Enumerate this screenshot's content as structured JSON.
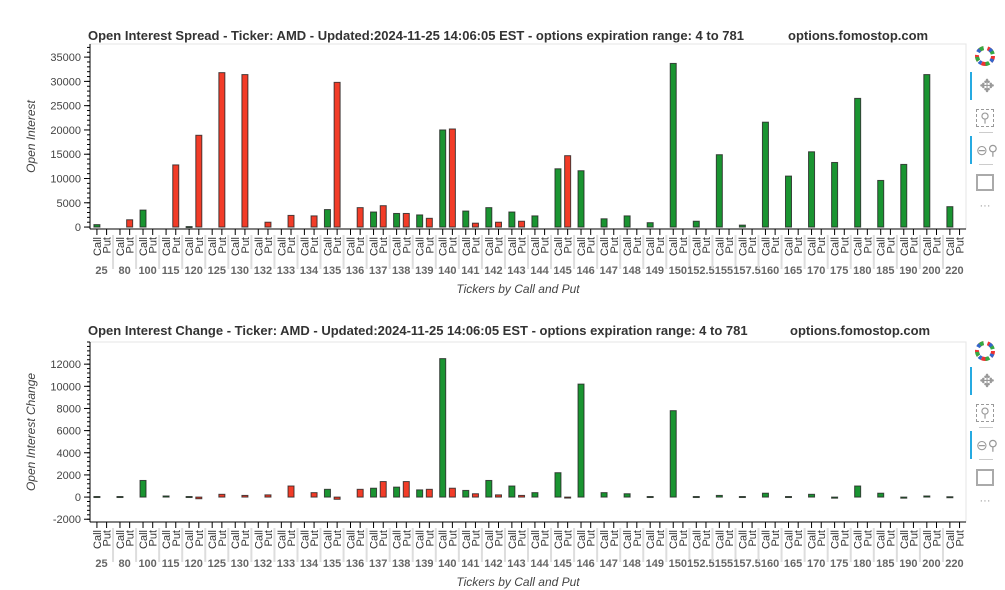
{
  "chart_data": [
    {
      "type": "bar",
      "title": "Open Interest Spread - Ticker: AMD - Updated:2024-11-25 14:06:05 EST - options expiration range: 4 to 781",
      "watermark": "options.fomostop.com",
      "xlabel": "Tickers by Call and Put",
      "ylabel": "Open Interest",
      "ylim": [
        -400,
        37700
      ],
      "yticks": [
        0,
        5000,
        10000,
        15000,
        20000,
        25000,
        30000,
        35000
      ],
      "categories": [
        "25",
        "80",
        "100",
        "115",
        "120",
        "125",
        "130",
        "132",
        "133",
        "134",
        "135",
        "136",
        "137",
        "138",
        "139",
        "140",
        "141",
        "142",
        "143",
        "144",
        "145",
        "146",
        "147",
        "148",
        "149",
        "150",
        "152.5",
        "155",
        "157.5",
        "160",
        "165",
        "170",
        "175",
        "180",
        "185",
        "190",
        "200",
        "220"
      ],
      "subcategories": [
        "Call",
        "Put"
      ],
      "series": [
        {
          "name": "Call",
          "color": "#1a9431",
          "values": [
            500,
            0,
            3500,
            0,
            100,
            0,
            0,
            0,
            0,
            0,
            3600,
            0,
            3100,
            2800,
            2500,
            20000,
            3300,
            4000,
            3100,
            2300,
            12000,
            11600,
            1700,
            2300,
            900,
            33700,
            1200,
            14900,
            400,
            21600,
            10500,
            15500,
            13300,
            26500,
            9600,
            12900,
            31400,
            4200
          ]
        },
        {
          "name": "Put",
          "color": "#f23c28",
          "values": [
            0,
            1500,
            0,
            12800,
            18900,
            31800,
            31400,
            1000,
            2400,
            2300,
            29800,
            4000,
            4400,
            2800,
            1800,
            20200,
            800,
            1000,
            1200,
            0,
            14700,
            0,
            0,
            0,
            0,
            0,
            0,
            0,
            0,
            0,
            0,
            0,
            0,
            0,
            0,
            0,
            0,
            0
          ]
        }
      ]
    },
    {
      "type": "bar",
      "title": "Open Interest Change - Ticker: AMD - Updated:2024-11-25 14:06:05 EST - options expiration range: 4 to 781",
      "watermark": "options.fomostop.com",
      "xlabel": "Tickers by Call and Put",
      "ylabel": "Open Interest Change",
      "ylim": [
        -2250,
        14000
      ],
      "yticks": [
        -2000,
        0,
        2000,
        4000,
        6000,
        8000,
        10000,
        12000
      ],
      "categories": [
        "25",
        "80",
        "100",
        "115",
        "120",
        "125",
        "130",
        "132",
        "133",
        "134",
        "135",
        "136",
        "137",
        "138",
        "139",
        "140",
        "141",
        "142",
        "143",
        "144",
        "145",
        "146",
        "147",
        "148",
        "149",
        "150",
        "152.5",
        "155",
        "157.5",
        "160",
        "165",
        "170",
        "175",
        "180",
        "185",
        "190",
        "200",
        "220"
      ],
      "subcategories": [
        "Call",
        "Put"
      ],
      "series": [
        {
          "name": "Call",
          "color": "#1a9431",
          "values": [
            50,
            50,
            1500,
            100,
            50,
            0,
            0,
            0,
            0,
            0,
            700,
            0,
            800,
            900,
            650,
            12500,
            600,
            1500,
            1000,
            400,
            2200,
            10200,
            400,
            300,
            50,
            7800,
            50,
            150,
            50,
            350,
            50,
            250,
            -100,
            1000,
            350,
            -100,
            100,
            30
          ]
        },
        {
          "name": "Put",
          "color": "#f23c28",
          "values": [
            0,
            0,
            0,
            0,
            -150,
            250,
            150,
            200,
            1000,
            400,
            -200,
            700,
            1400,
            1400,
            700,
            800,
            300,
            200,
            150,
            0,
            -50,
            0,
            0,
            0,
            0,
            0,
            0,
            0,
            0,
            0,
            0,
            0,
            0,
            0,
            0,
            0,
            0,
            0
          ]
        }
      ]
    }
  ],
  "toolbar": {
    "icons": [
      "bokeh-logo-icon",
      "pan-icon",
      "box-zoom-icon",
      "wheel-zoom-icon",
      "save-icon",
      "more-icon"
    ],
    "more_label": "···"
  }
}
